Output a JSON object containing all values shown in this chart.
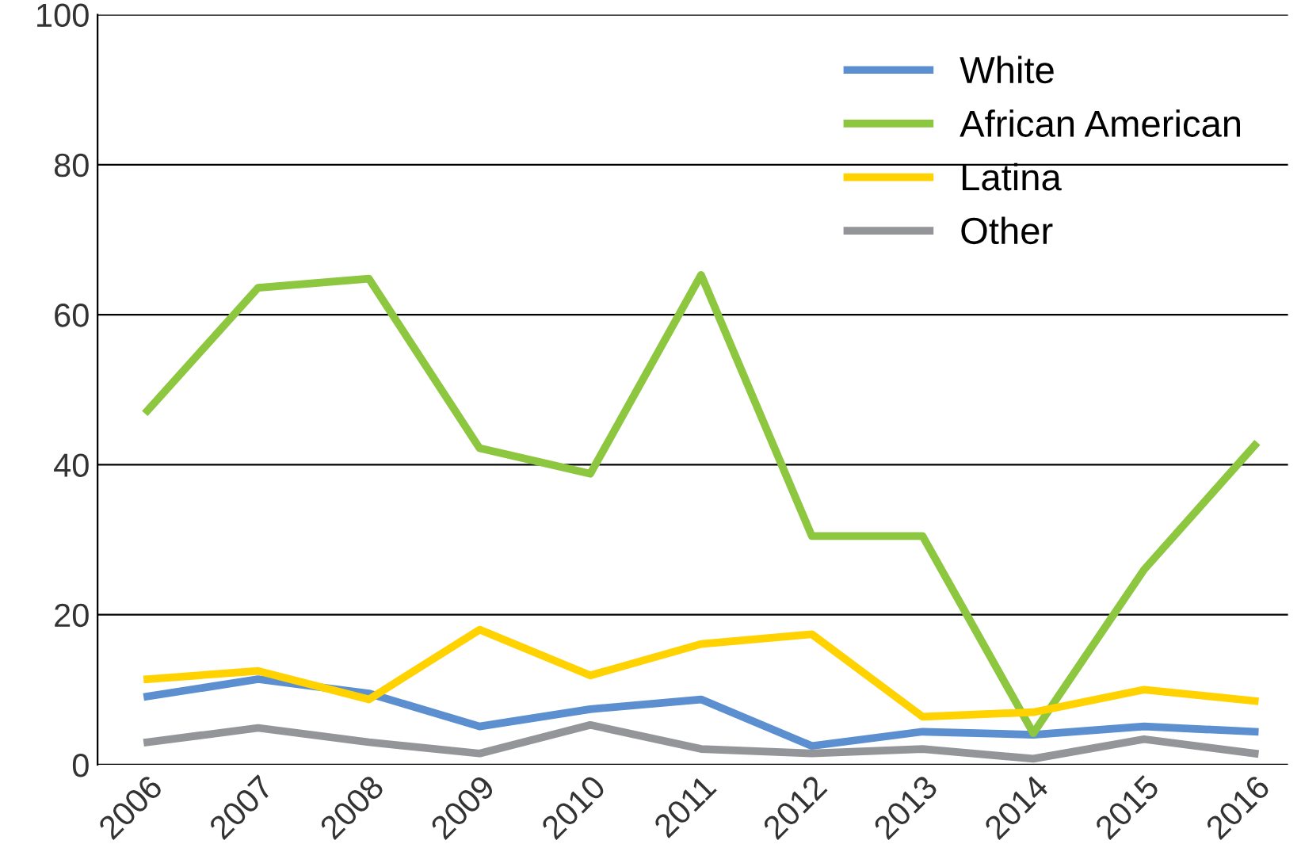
{
  "chart_data": {
    "type": "line",
    "categories": [
      "2006",
      "2007",
      "2008",
      "2009",
      "2010",
      "2011",
      "2012",
      "2013",
      "2014",
      "2015",
      "2016"
    ],
    "series": [
      {
        "name": "White",
        "color": "#5b8fd0",
        "values": [
          9.1,
          11.4,
          9.5,
          5.1,
          7.4,
          8.7,
          2.5,
          4.4,
          4.0,
          5.1,
          4.4
        ]
      },
      {
        "name": "African American",
        "color": "#8dc63f",
        "values": [
          47.2,
          63.6,
          64.8,
          42.2,
          38.8,
          65.3,
          30.5,
          30.5,
          4.2,
          26.0,
          42.6
        ]
      },
      {
        "name": "Latina",
        "color": "#ffd200",
        "values": [
          11.4,
          12.5,
          8.7,
          18.0,
          11.9,
          16.1,
          17.4,
          6.4,
          7.0,
          10.0,
          8.5
        ]
      },
      {
        "name": "Other",
        "color": "#939598",
        "values": [
          3.0,
          4.9,
          3.0,
          1.5,
          5.3,
          2.1,
          1.5,
          2.1,
          0.8,
          3.4,
          1.5
        ]
      }
    ],
    "ylim": [
      0,
      100
    ],
    "yticks": [
      0,
      20,
      40,
      60,
      80,
      100
    ],
    "grid": "y",
    "legend": "top right",
    "marker": "none",
    "line_style": "solid"
  }
}
